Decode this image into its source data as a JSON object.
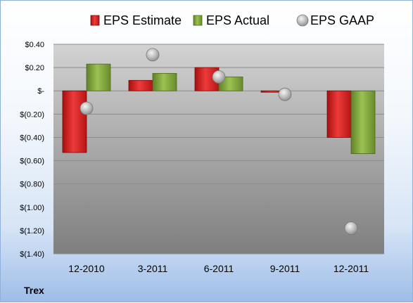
{
  "chart_data": {
    "type": "bar",
    "title": "",
    "company": "Trex",
    "categories": [
      "12-2010",
      "3-2011",
      "6-2011",
      "9-2011",
      "12-2011"
    ],
    "series": [
      {
        "name": "EPS Estimate",
        "kind": "bar",
        "color": "#d61f1f",
        "values": [
          -0.53,
          0.09,
          0.2,
          -0.01,
          -0.4
        ]
      },
      {
        "name": "EPS Actual",
        "kind": "bar",
        "color": "#7fa33a",
        "values": [
          0.23,
          0.15,
          0.12,
          null,
          -0.54
        ]
      },
      {
        "name": "EPS GAAP",
        "kind": "marker",
        "color": "#b0b0b0",
        "values": [
          -0.15,
          0.31,
          0.12,
          -0.03,
          -1.18
        ]
      }
    ],
    "yticks": [
      "$0.40",
      "$0.20",
      "$-",
      "$(0.20)",
      "$(0.40)",
      "$(0.60)",
      "$(0.80)",
      "$(1.00)",
      "$(1.20)",
      "$(1.40)"
    ],
    "ylim": [
      -1.4,
      0.4
    ],
    "grid": true,
    "legend_position": "top"
  }
}
